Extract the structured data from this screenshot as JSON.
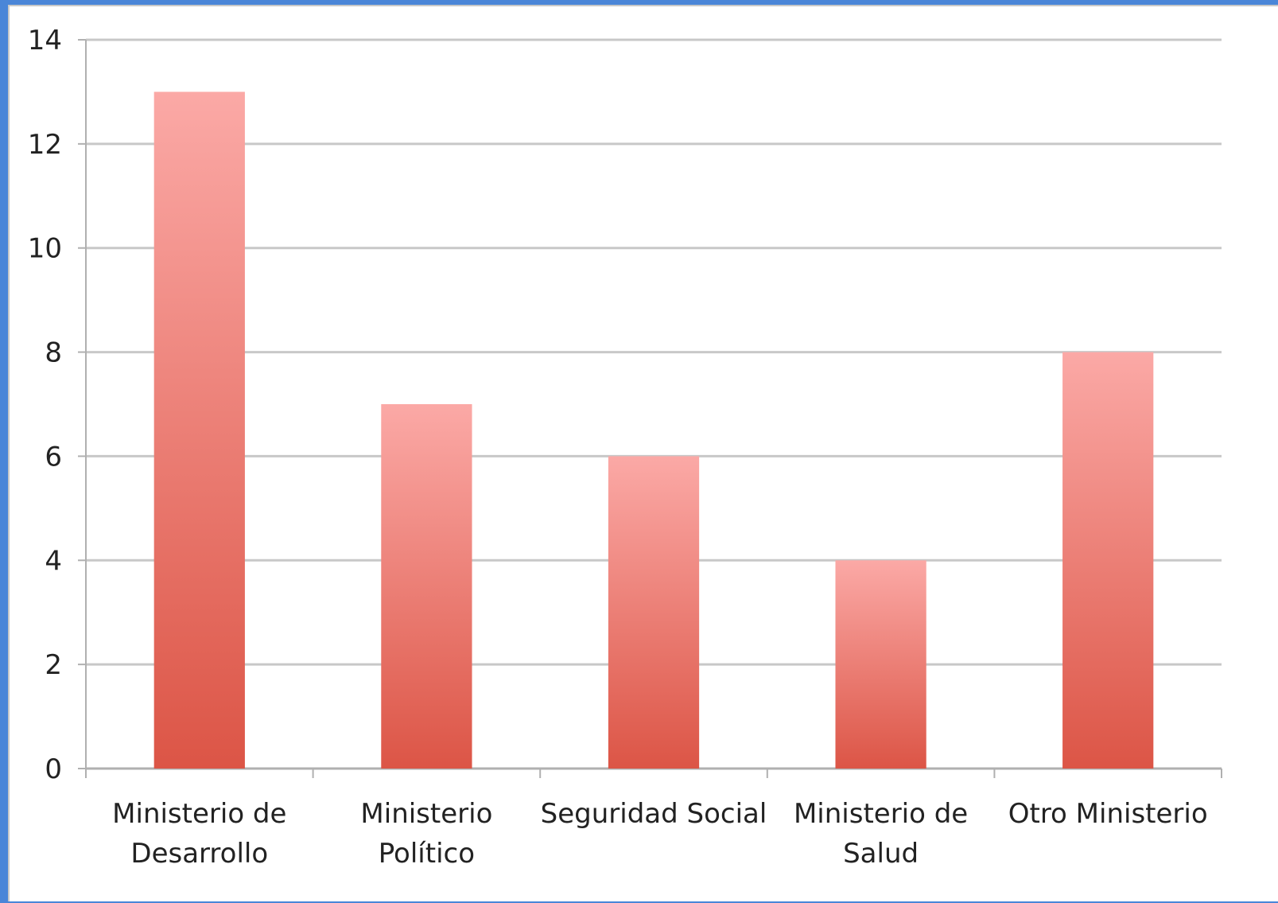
{
  "chart_data": {
    "type": "bar",
    "title": "",
    "xlabel": "",
    "ylabel": "",
    "categories": [
      [
        "Ministerio de",
        "Desarrollo"
      ],
      [
        "Ministerio",
        "Político"
      ],
      [
        "Seguridad Social"
      ],
      [
        "Ministerio de",
        "Salud"
      ],
      [
        "Otro Ministerio"
      ]
    ],
    "values": [
      13,
      7,
      6,
      4,
      8
    ],
    "ylim": [
      0,
      14
    ],
    "yticks": [
      0,
      2,
      4,
      6,
      8,
      10,
      12,
      14
    ],
    "grid": true,
    "legend": "none",
    "colors": {
      "bar_top": "#fba9a6",
      "bar_bottom": "#dc5546",
      "grid": "#c8c8c8",
      "axis": "#b0b0b0"
    }
  }
}
